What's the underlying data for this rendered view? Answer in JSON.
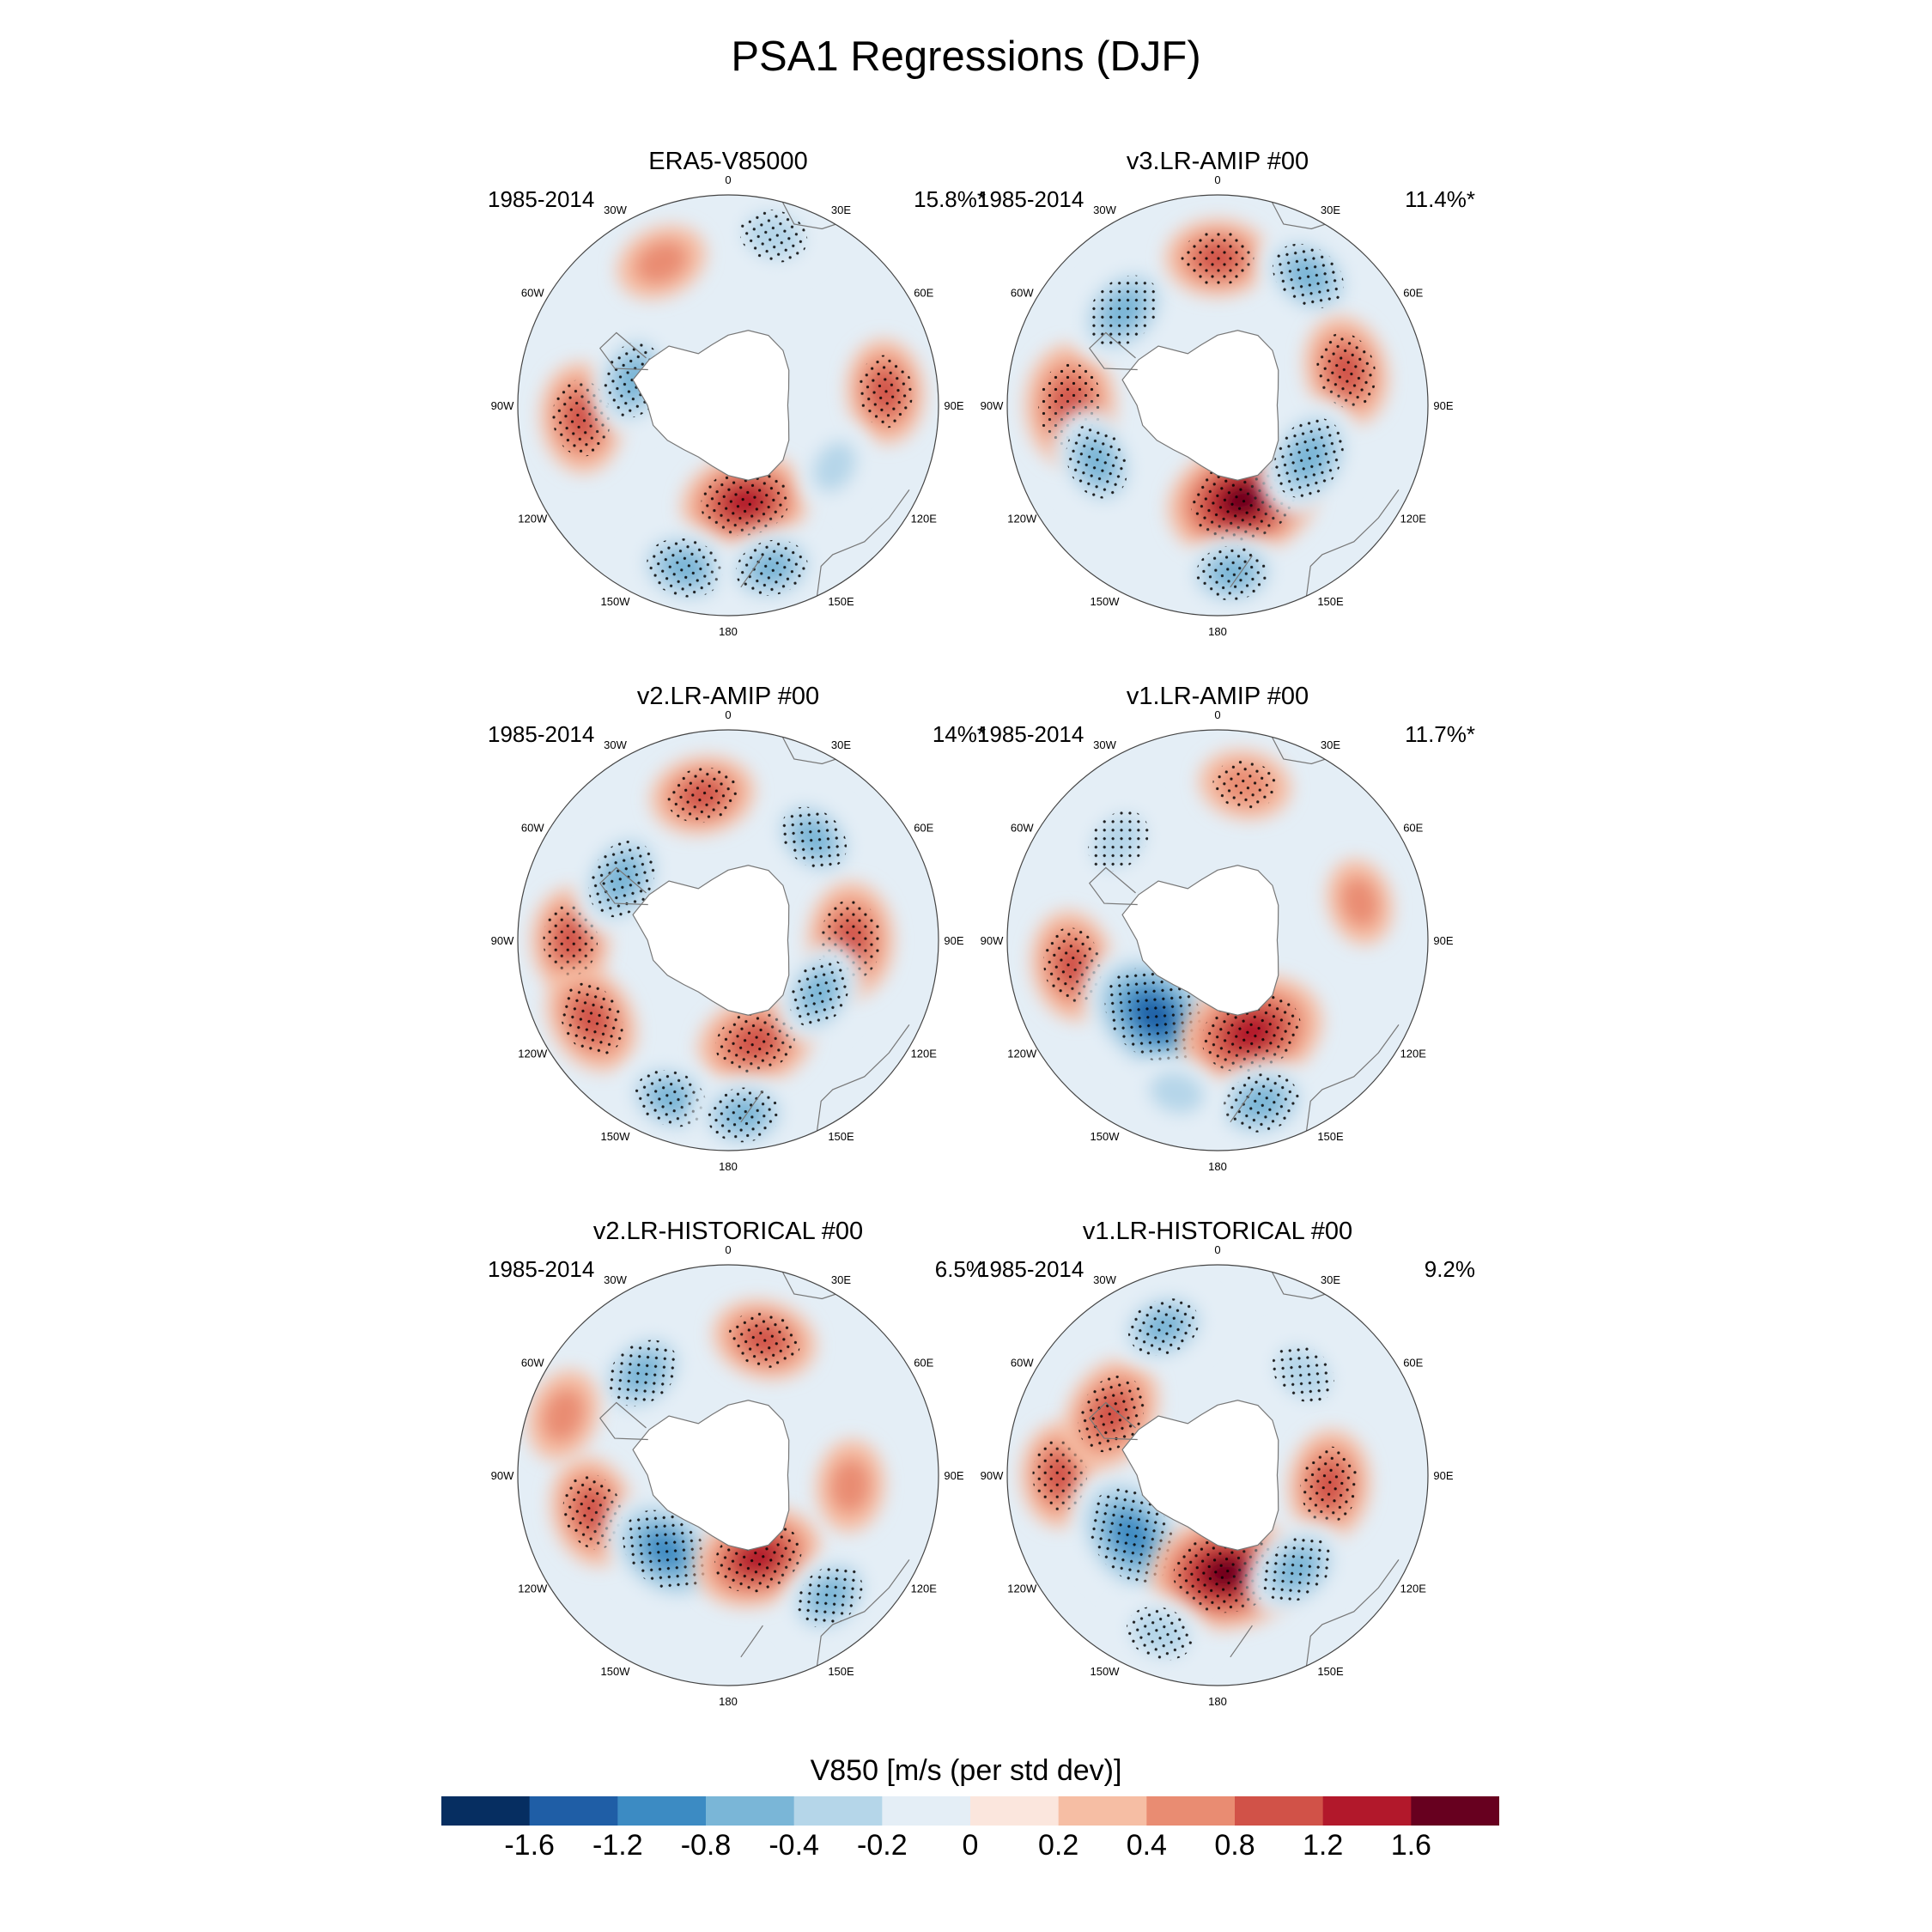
{
  "figure_title": "PSA1 Regressions (DJF)",
  "colorbar": {
    "label": "V850 [m/s (per std dev)]",
    "tick_labels": [
      "-1.6",
      "-1.2",
      "-0.8",
      "-0.4",
      "-0.2",
      "0",
      "0.2",
      "0.4",
      "0.8",
      "1.2",
      "1.6"
    ],
    "colors": [
      "#062e61",
      "#1f5ea6",
      "#3c8bc3",
      "#7ab6d7",
      "#b5d6e9",
      "#e4eef6",
      "#fbe6dd",
      "#f6bea4",
      "#e98c72",
      "#d15248",
      "#b2182b",
      "#67001f"
    ]
  },
  "longitude_labels": [
    "0",
    "30E",
    "60E",
    "90E",
    "120E",
    "150E",
    "180",
    "150W",
    "120W",
    "90W",
    "60W",
    "30W"
  ],
  "panels": [
    {
      "title": "ERA5-V85000",
      "period": "1985-2014",
      "variance_explained": "15.8%*"
    },
    {
      "title": "v3.LR-AMIP  #00",
      "period": "1985-2014",
      "variance_explained": "11.4%*"
    },
    {
      "title": "v2.LR-AMIP  #00",
      "period": "1985-2014",
      "variance_explained": "14%*"
    },
    {
      "title": "v1.LR-AMIP  #00",
      "period": "1985-2014",
      "variance_explained": "11.7%*"
    },
    {
      "title": "v2.LR-HISTORICAL  #00",
      "period": "1985-2014",
      "variance_explained": "6.5%"
    },
    {
      "title": "v1.LR-HISTORICAL  #00",
      "period": "1985-2014",
      "variance_explained": "9.2%"
    }
  ],
  "map_blobs": [
    [
      {
        "lon": -95,
        "lat": -48,
        "val": 0.6,
        "sig": true
      },
      {
        "lon": 170,
        "lat": -62,
        "val": 0.9,
        "sig": true
      },
      {
        "lon": -75,
        "lat": -62,
        "val": -0.6,
        "sig": true
      },
      {
        "lon": -165,
        "lat": -42,
        "val": -0.6,
        "sig": true
      },
      {
        "lon": 165,
        "lat": -42,
        "val": -0.5,
        "sig": true
      },
      {
        "lon": 15,
        "lat": -40,
        "val": -0.4,
        "sig": true
      },
      {
        "lon": -25,
        "lat": -45,
        "val": 0.3,
        "sig": false
      },
      {
        "lon": 85,
        "lat": -45,
        "val": 0.5,
        "sig": true
      },
      {
        "lon": 120,
        "lat": -55,
        "val": -0.25,
        "sig": false
      }
    ],
    [
      {
        "lon": -90,
        "lat": -48,
        "val": 0.8,
        "sig": true
      },
      {
        "lon": 165,
        "lat": -62,
        "val": 1.3,
        "sig": true
      },
      {
        "lon": -115,
        "lat": -52,
        "val": -0.6,
        "sig": true
      },
      {
        "lon": -45,
        "lat": -52,
        "val": -0.7,
        "sig": true
      },
      {
        "lon": 0,
        "lat": -48,
        "val": 0.5,
        "sig": true
      },
      {
        "lon": 35,
        "lat": -45,
        "val": -0.6,
        "sig": true
      },
      {
        "lon": 75,
        "lat": -52,
        "val": 0.6,
        "sig": true
      },
      {
        "lon": 120,
        "lat": -60,
        "val": -0.8,
        "sig": true
      },
      {
        "lon": 175,
        "lat": -42,
        "val": -0.5,
        "sig": true
      }
    ],
    [
      {
        "lon": -90,
        "lat": -45,
        "val": 0.5,
        "sig": true
      },
      {
        "lon": -120,
        "lat": -45,
        "val": 0.6,
        "sig": true
      },
      {
        "lon": 165,
        "lat": -60,
        "val": 0.7,
        "sig": true
      },
      {
        "lon": -60,
        "lat": -55,
        "val": -0.7,
        "sig": true
      },
      {
        "lon": -10,
        "lat": -48,
        "val": 0.5,
        "sig": true
      },
      {
        "lon": 40,
        "lat": -52,
        "val": -0.5,
        "sig": true
      },
      {
        "lon": 90,
        "lat": -55,
        "val": 0.7,
        "sig": true
      },
      {
        "lon": 120,
        "lat": -60,
        "val": -0.5,
        "sig": true
      },
      {
        "lon": -160,
        "lat": -42,
        "val": -0.5,
        "sig": true
      },
      {
        "lon": 175,
        "lat": -40,
        "val": -0.5,
        "sig": true
      }
    ],
    [
      {
        "lon": -100,
        "lat": -48,
        "val": 0.6,
        "sig": true
      },
      {
        "lon": -140,
        "lat": -62,
        "val": -1.4,
        "sig": true
      },
      {
        "lon": 160,
        "lat": -62,
        "val": 1.2,
        "sig": true
      },
      {
        "lon": -45,
        "lat": -50,
        "val": -0.4,
        "sig": true
      },
      {
        "lon": 10,
        "lat": -45,
        "val": 0.3,
        "sig": true
      },
      {
        "lon": 165,
        "lat": -42,
        "val": -0.6,
        "sig": true
      },
      {
        "lon": 75,
        "lat": -48,
        "val": 0.2,
        "sig": false
      },
      {
        "lon": -165,
        "lat": -45,
        "val": -0.3,
        "sig": false
      }
    ],
    [
      {
        "lon": -105,
        "lat": -50,
        "val": 0.6,
        "sig": true
      },
      {
        "lon": -140,
        "lat": -62,
        "val": -1.0,
        "sig": true
      },
      {
        "lon": 160,
        "lat": -65,
        "val": 0.9,
        "sig": true
      },
      {
        "lon": -40,
        "lat": -52,
        "val": -0.6,
        "sig": true
      },
      {
        "lon": 15,
        "lat": -50,
        "val": 0.5,
        "sig": true
      },
      {
        "lon": 140,
        "lat": -45,
        "val": -0.5,
        "sig": true
      },
      {
        "lon": -70,
        "lat": -40,
        "val": 0.3,
        "sig": false
      },
      {
        "lon": 95,
        "lat": -55,
        "val": 0.3,
        "sig": false
      }
    ],
    [
      {
        "lon": -90,
        "lat": -45,
        "val": 0.5,
        "sig": true
      },
      {
        "lon": -125,
        "lat": -60,
        "val": -1.2,
        "sig": true
      },
      {
        "lon": 175,
        "lat": -62,
        "val": 1.3,
        "sig": true
      },
      {
        "lon": -60,
        "lat": -55,
        "val": 0.7,
        "sig": true
      },
      {
        "lon": -20,
        "lat": -45,
        "val": -0.5,
        "sig": true
      },
      {
        "lon": 40,
        "lat": -52,
        "val": -0.4,
        "sig": true
      },
      {
        "lon": 95,
        "lat": -58,
        "val": 0.6,
        "sig": true
      },
      {
        "lon": 140,
        "lat": -55,
        "val": -0.6,
        "sig": true
      },
      {
        "lon": -160,
        "lat": -42,
        "val": -0.4,
        "sig": true
      }
    ]
  ]
}
